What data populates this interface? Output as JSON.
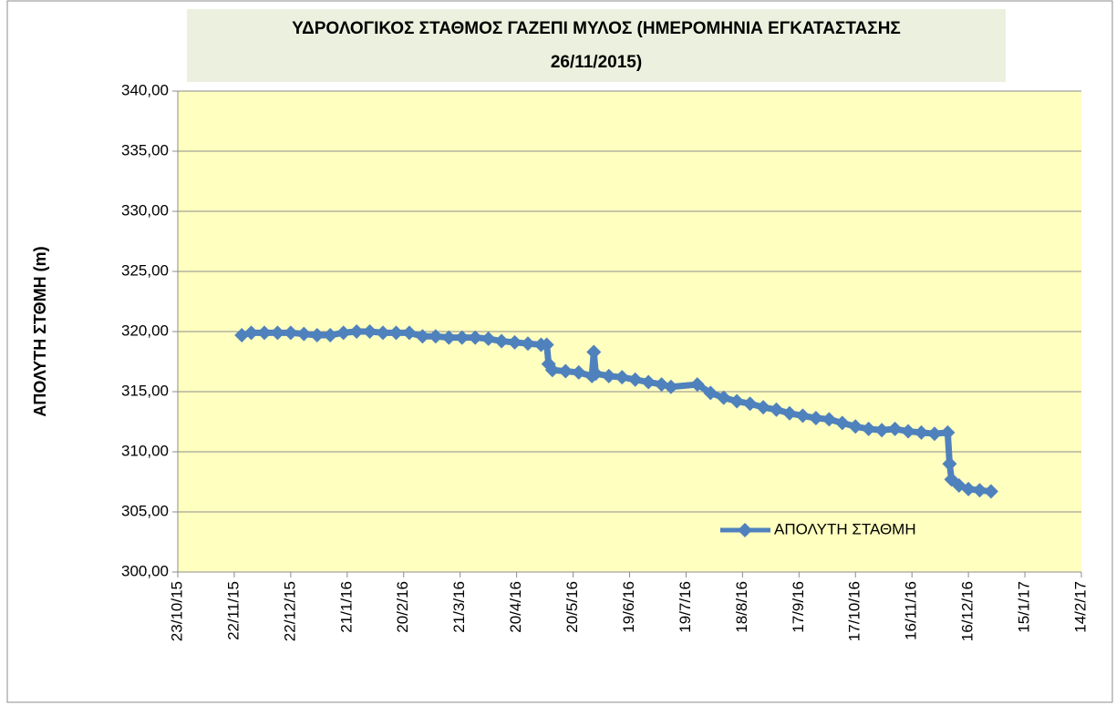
{
  "chart_data": {
    "type": "line",
    "title": "ΥΔΡΟΛΟΓΙΚΟΣ ΣΤΑΘΜΟΣ ΓΑΖΕΠΙ ΜΥΛΟΣ (ΗΜΕΡΟΜΗΝΙΑ ΕΓΚΑΤΑΣΤΑΣΗΣ",
    "subtitle": "26/11/2015)",
    "y_label": "ΑΠΟΛΥΤΗ ΣΤΘΜΗ (m)",
    "legend": "lower right",
    "grid": true,
    "x": [
      "26/11/15",
      "1/12/15",
      "8/12/15",
      "15/12/15",
      "22/12/15",
      "29/12/15",
      "5/1/16",
      "12/1/16",
      "19/1/16",
      "26/1/16",
      "2/2/16",
      "9/2/16",
      "16/2/16",
      "23/2/16",
      "1/3/16",
      "8/3/16",
      "15/3/16",
      "22/3/16",
      "29/3/16",
      "5/4/16",
      "12/4/16",
      "19/4/16",
      "26/4/16",
      "3/5/16",
      "6/5/16",
      "7/5/16",
      "9/5/16",
      "16/5/16",
      "23/5/16",
      "30/5/16",
      "31/5/16",
      "1/6/16",
      "8/6/16",
      "15/6/16",
      "22/6/16",
      "29/6/16",
      "6/7/16",
      "11/7/16",
      "25/7/16",
      "1/8/16",
      "8/8/16",
      "15/8/16",
      "22/8/16",
      "29/8/16",
      "5/9/16",
      "12/9/16",
      "19/9/16",
      "26/9/16",
      "3/10/16",
      "10/10/16",
      "17/10/16",
      "24/10/16",
      "31/10/16",
      "7/11/16",
      "14/11/16",
      "21/11/16",
      "28/11/16",
      "5/12/16",
      "6/12/16",
      "7/12/16",
      "11/12/16",
      "16/12/16",
      "22/12/16",
      "28/12/16"
    ],
    "series": [
      {
        "name": "ΑΠΟΛΥΤΗ ΣΤΑΘΜΗ",
        "color": "#4f81bd",
        "values": [
          319.7,
          319.9,
          319.9,
          319.9,
          319.9,
          319.8,
          319.7,
          319.7,
          319.9,
          320.0,
          320.0,
          319.9,
          319.9,
          319.9,
          319.6,
          319.6,
          319.5,
          319.5,
          319.5,
          319.4,
          319.2,
          319.1,
          319.0,
          318.9,
          318.9,
          317.3,
          316.8,
          316.7,
          316.6,
          316.3,
          318.3,
          316.5,
          316.3,
          316.2,
          316.0,
          315.8,
          315.6,
          315.4,
          315.6,
          314.9,
          314.5,
          314.2,
          314.0,
          313.7,
          313.5,
          313.2,
          313.0,
          312.8,
          312.7,
          312.4,
          312.1,
          311.9,
          311.8,
          311.9,
          311.7,
          311.6,
          311.5,
          311.6,
          309.0,
          307.7,
          307.2,
          306.9,
          306.8,
          306.7
        ]
      }
    ],
    "xlim": [
      "23/10/15",
      "14/2/17"
    ],
    "xticks": [
      "23/10/15",
      "22/11/15",
      "22/12/15",
      "21/1/16",
      "20/2/16",
      "21/3/16",
      "20/4/16",
      "20/5/16",
      "19/6/16",
      "19/7/16",
      "18/8/16",
      "17/9/16",
      "17/10/16",
      "16/11/16",
      "16/12/16",
      "15/1/17",
      "14/2/17"
    ],
    "ylim": [
      300,
      340
    ],
    "yticks": [
      {
        "value": 300,
        "label": "300,00"
      },
      {
        "value": 305,
        "label": "305,00"
      },
      {
        "value": 310,
        "label": "310,00"
      },
      {
        "value": 315,
        "label": "315,00"
      },
      {
        "value": 320,
        "label": "320,00"
      },
      {
        "value": 325,
        "label": "325,00"
      },
      {
        "value": 330,
        "label": "330,00"
      },
      {
        "value": 335,
        "label": "335,00"
      },
      {
        "value": 340,
        "label": "340,00"
      }
    ]
  }
}
